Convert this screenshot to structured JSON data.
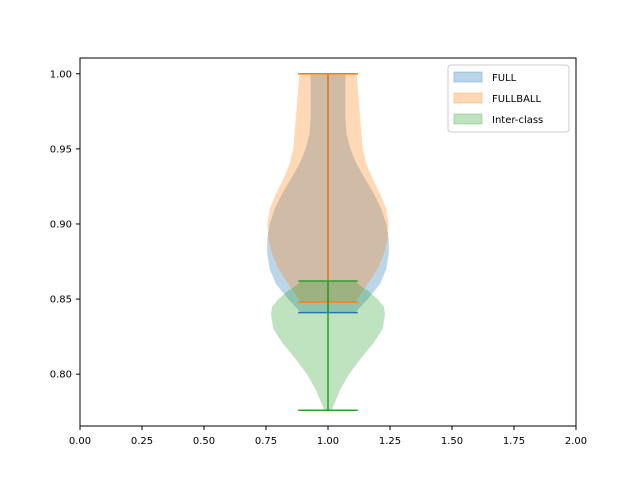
{
  "chart_data": {
    "type": "violin",
    "title": "",
    "xlabel": "",
    "ylabel": "",
    "xlim": [
      0,
      2
    ],
    "ylim": [
      0.7655,
      1.0105
    ],
    "xticks": [
      "0.00",
      "0.25",
      "0.50",
      "0.75",
      "1.00",
      "1.25",
      "1.50",
      "1.75",
      "2.00"
    ],
    "xtick_values": [
      0,
      0.25,
      0.5,
      0.75,
      1.0,
      1.25,
      1.5,
      1.75,
      2.0
    ],
    "yticks": [
      "0.80",
      "0.85",
      "0.90",
      "0.95",
      "1.00"
    ],
    "ytick_values": [
      0.8,
      0.85,
      0.9,
      0.95,
      1.0
    ],
    "grid": false,
    "legend_position": "top-right",
    "position": 1.0,
    "series": [
      {
        "name": "FULL",
        "color": "#1f77b4",
        "min": 0.841,
        "max": 1.0,
        "profile": [
          [
            0.841,
            0.11
          ],
          [
            0.85,
            0.16
          ],
          [
            0.86,
            0.21
          ],
          [
            0.87,
            0.235
          ],
          [
            0.88,
            0.245
          ],
          [
            0.89,
            0.245
          ],
          [
            0.9,
            0.235
          ],
          [
            0.91,
            0.215
          ],
          [
            0.92,
            0.185
          ],
          [
            0.93,
            0.15
          ],
          [
            0.94,
            0.115
          ],
          [
            0.95,
            0.09
          ],
          [
            0.96,
            0.075
          ],
          [
            0.97,
            0.07
          ],
          [
            0.98,
            0.07
          ],
          [
            0.99,
            0.07
          ],
          [
            1.0,
            0.07
          ]
        ]
      },
      {
        "name": "FULLBALL",
        "color": "#ff7f0e",
        "min": 0.848,
        "max": 1.0,
        "profile": [
          [
            0.848,
            0.11
          ],
          [
            0.86,
            0.16
          ],
          [
            0.87,
            0.2
          ],
          [
            0.88,
            0.225
          ],
          [
            0.89,
            0.24
          ],
          [
            0.9,
            0.245
          ],
          [
            0.91,
            0.235
          ],
          [
            0.92,
            0.21
          ],
          [
            0.93,
            0.18
          ],
          [
            0.94,
            0.155
          ],
          [
            0.95,
            0.14
          ],
          [
            0.96,
            0.135
          ],
          [
            0.97,
            0.13
          ],
          [
            0.98,
            0.125
          ],
          [
            0.99,
            0.12
          ],
          [
            1.0,
            0.115
          ]
        ]
      },
      {
        "name": "Inter-class",
        "color": "#2ca02c",
        "min": 0.776,
        "max": 0.862,
        "profile": [
          [
            0.776,
            0.015
          ],
          [
            0.78,
            0.025
          ],
          [
            0.79,
            0.05
          ],
          [
            0.8,
            0.085
          ],
          [
            0.81,
            0.13
          ],
          [
            0.82,
            0.18
          ],
          [
            0.83,
            0.22
          ],
          [
            0.84,
            0.23
          ],
          [
            0.845,
            0.225
          ],
          [
            0.85,
            0.2
          ],
          [
            0.855,
            0.165
          ],
          [
            0.86,
            0.12
          ],
          [
            0.862,
            0.11
          ]
        ]
      }
    ]
  }
}
